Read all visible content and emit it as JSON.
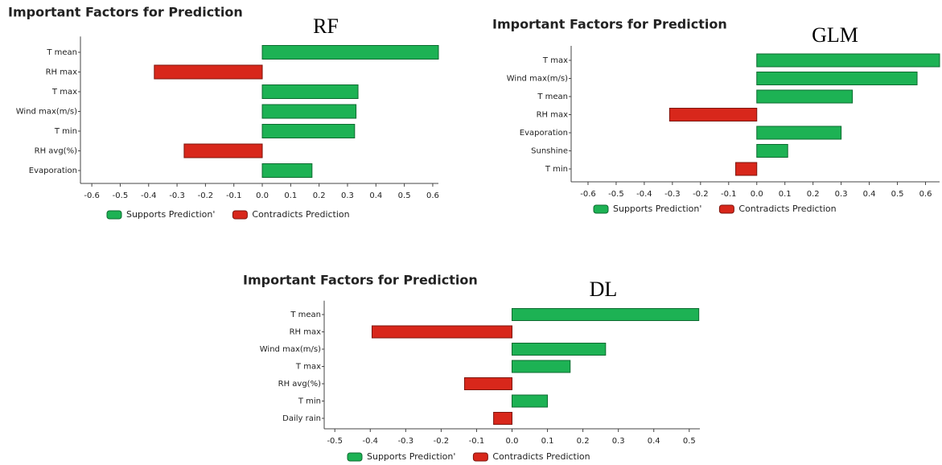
{
  "chart_data": [
    {
      "type": "barh",
      "title": "Important Factors for Prediction",
      "label": "RF",
      "categories": [
        "T mean",
        "RH max",
        "T max",
        "Wind max(m/s)",
        "T min",
        "RH avg(%)",
        "Evaporation"
      ],
      "values": [
        0.62,
        -0.38,
        0.337,
        0.33,
        0.325,
        -0.275,
        0.175
      ],
      "xlim": [
        -0.64,
        0.62
      ],
      "xticks": [
        -0.6,
        -0.5,
        -0.4,
        -0.3,
        -0.2,
        -0.1,
        {
          "value": 0,
          "label": "0.0"
        },
        0.1,
        0.2,
        0.3,
        0.4,
        0.5,
        0.6
      ],
      "legend": [
        {
          "name": "Supports Prediction'",
          "color": "#1db254"
        },
        {
          "name": "Contradicts Prediction",
          "color": "#d8271b"
        }
      ]
    },
    {
      "type": "barh",
      "title": "Important Factors for Prediction",
      "label": "GLM",
      "categories": [
        "T max",
        "Wind max(m/s)",
        "T mean",
        "RH max",
        "Evaporation",
        "Sunshine",
        "T min"
      ],
      "values": [
        0.65,
        0.57,
        0.34,
        -0.31,
        0.3,
        0.11,
        -0.075
      ],
      "xlim": [
        -0.66,
        0.65
      ],
      "xticks": [
        -0.6,
        -0.5,
        -0.4,
        -0.3,
        -0.2,
        -0.1,
        {
          "value": 0,
          "label": "0.0"
        },
        0.1,
        0.2,
        0.3,
        0.4,
        0.5,
        0.6
      ],
      "legend": [
        {
          "name": "Supports Prediction'",
          "color": "#1db254"
        },
        {
          "name": "Contradicts Prediction",
          "color": "#d8271b"
        }
      ]
    },
    {
      "type": "barh",
      "title": "Important Factors for Prediction",
      "label": "DL",
      "categories": [
        "T mean",
        "RH max",
        "Wind max(m/s)",
        "T max",
        "RH avg(%)",
        "T min",
        "Daily rain"
      ],
      "values": [
        0.527,
        -0.395,
        0.264,
        0.164,
        -0.134,
        0.1,
        -0.052
      ],
      "xlim": [
        -0.53,
        0.53
      ],
      "xticks": [
        -0.5,
        -0.4,
        -0.3,
        -0.2,
        -0.1,
        {
          "value": 0,
          "label": "0.0"
        },
        0.1,
        0.2,
        0.3,
        0.4,
        0.5
      ],
      "legend": [
        {
          "name": "Supports Prediction'",
          "color": "#1db254"
        },
        {
          "name": "Contradicts Prediction",
          "color": "#d8271b"
        }
      ]
    }
  ]
}
